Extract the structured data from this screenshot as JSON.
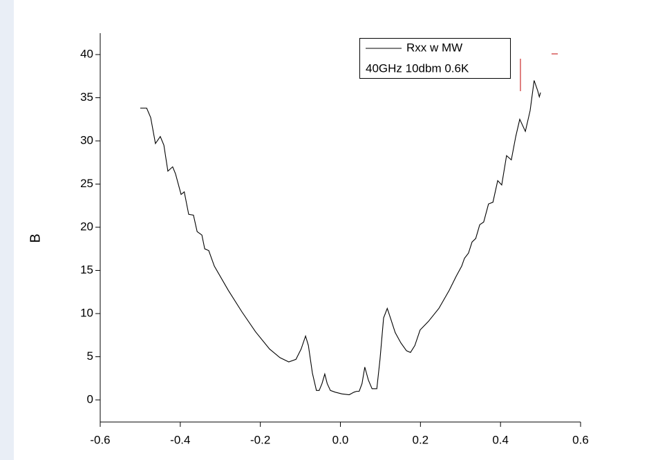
{
  "chart_data": {
    "type": "line",
    "y_label": "B",
    "annotation": "40GHz 10dbm 0.6K",
    "xlim": [
      -0.6,
      0.6
    ],
    "xticks": [
      -0.6,
      -0.4,
      -0.2,
      {
        "value": 0,
        "label": "0.0"
      },
      0.2,
      0.4,
      0.6
    ],
    "ylim": [
      -2.56,
      42.48
    ],
    "yticks": [
      0,
      5,
      10,
      15,
      20,
      25,
      30,
      35,
      40
    ],
    "grid": false,
    "legend": "top-right",
    "series": [
      {
        "name": "Rxx w MW",
        "color": "#000000",
        "x": [
          -0.5,
          -0.484,
          -0.474,
          -0.462,
          -0.45,
          -0.441,
          -0.431,
          -0.419,
          -0.412,
          -0.398,
          -0.39,
          -0.379,
          -0.367,
          -0.358,
          -0.346,
          -0.339,
          -0.329,
          -0.315,
          -0.28,
          -0.246,
          -0.212,
          -0.177,
          -0.151,
          -0.129,
          -0.111,
          -0.098,
          -0.087,
          -0.08,
          -0.07,
          -0.06,
          -0.053,
          -0.046,
          -0.039,
          -0.033,
          -0.025,
          -0.013,
          0.004,
          0.022,
          0.034,
          0.041,
          0.047,
          0.054,
          0.061,
          0.07,
          0.079,
          0.091,
          0.099,
          0.108,
          0.117,
          0.125,
          0.137,
          0.151,
          0.165,
          0.175,
          0.186,
          0.199,
          0.22,
          0.246,
          0.272,
          0.289,
          0.303,
          0.31,
          0.32,
          0.329,
          0.338,
          0.348,
          0.358,
          0.37,
          0.381,
          0.393,
          0.403,
          0.415,
          0.427,
          0.438,
          0.448,
          0.462,
          0.474,
          0.484,
          0.493,
          0.497,
          0.5
        ],
        "values": [
          33.8,
          33.8,
          32.7,
          29.7,
          30.5,
          29.5,
          26.5,
          27,
          26.2,
          23.8,
          24.1,
          21.5,
          21.4,
          19.5,
          19.1,
          17.5,
          17.3,
          15.5,
          12.7,
          10.2,
          7.9,
          5.9,
          4.9,
          4.4,
          4.7,
          5.9,
          7.4,
          6.3,
          3.1,
          1.1,
          1.1,
          1.9,
          3.0,
          1.9,
          1.1,
          0.9,
          0.7,
          0.6,
          0.9,
          1.0,
          1.0,
          1.9,
          3.8,
          2.3,
          1.3,
          1.3,
          4.7,
          9.5,
          10.6,
          9.5,
          7.8,
          6.6,
          5.7,
          5.5,
          6.3,
          8.1,
          9.1,
          10.6,
          12.7,
          14.3,
          15.5,
          16.4,
          17.0,
          18.3,
          18.7,
          20.3,
          20.6,
          22.7,
          22.9,
          25.4,
          24.9,
          28.3,
          27.8,
          30.5,
          32.5,
          31.1,
          33.5,
          37,
          35.8,
          35.1,
          35.6
        ]
      }
    ]
  }
}
